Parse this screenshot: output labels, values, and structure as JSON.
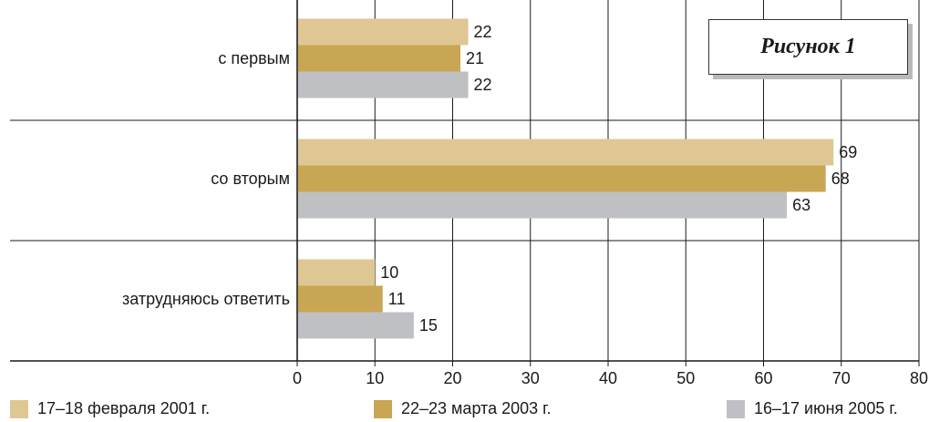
{
  "chart_data": {
    "type": "bar",
    "orientation": "horizontal",
    "title": "Рисунок 1",
    "categories": [
      "с первым",
      "со вторым",
      "затрудняюсь ответить"
    ],
    "series": [
      {
        "name": "17–18 февраля 2001 г.",
        "color": "#dfc794",
        "values": [
          22,
          69,
          10
        ]
      },
      {
        "name": "22–23 марта 2003 г.",
        "color": "#c9a654",
        "values": [
          21,
          68,
          11
        ]
      },
      {
        "name": "16–17 июня 2005 г.",
        "color": "#bfc0c4",
        "values": [
          22,
          63,
          15
        ]
      }
    ],
    "xlim": [
      0,
      80
    ],
    "xticks": [
      "0",
      "10",
      "20",
      "30",
      "40",
      "50",
      "60",
      "70",
      "80"
    ],
    "grid": "vertical",
    "legend_position": "bottom"
  }
}
